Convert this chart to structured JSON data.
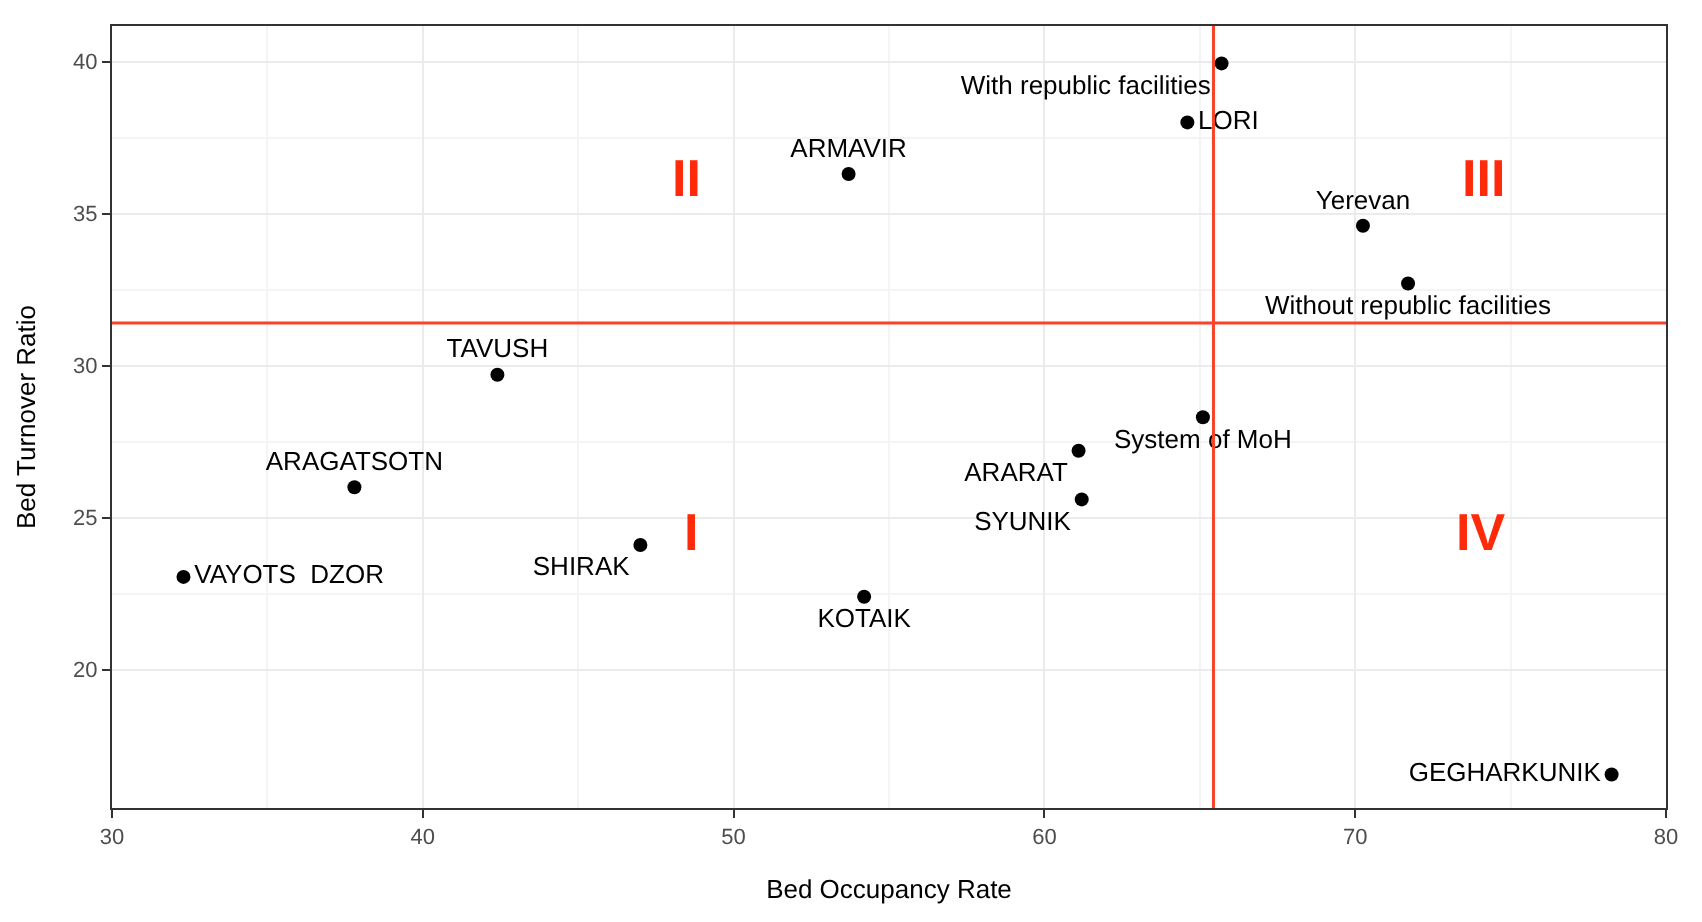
{
  "chart_data": {
    "type": "scatter",
    "xlabel": "Bed Occupancy Rate",
    "ylabel": "Bed Turnover Ratio",
    "xlim": [
      30,
      80
    ],
    "ylim": [
      15.45,
      41.17
    ],
    "xticks": [
      30,
      40,
      50,
      60,
      70,
      80
    ],
    "yticks": [
      20,
      25,
      30,
      35,
      40
    ],
    "grid": true,
    "marker": "circle",
    "series": [
      {
        "color": "#000000",
        "x": [
          65.7,
          64.6,
          53.7,
          70.25,
          71.7,
          42.4,
          65.1,
          61.1,
          37.8,
          61.2,
          47.0,
          32.3,
          54.2,
          78.25
        ],
        "values": [
          39.94,
          38.0,
          36.3,
          34.6,
          32.7,
          29.7,
          28.3,
          27.2,
          26.0,
          25.6,
          24.1,
          23.05,
          22.4,
          16.55
        ],
        "value_labels": [
          "With republic facilities",
          "LORI",
          "ARMAVIR",
          "Yerevan",
          "Without republic facilities",
          "TAVUSH",
          "System of MoH",
          "ARARAT",
          "ARAGATSOTN",
          "SYUNIK",
          "SHIRAK",
          "VAYOTS  DZOR",
          "KOTAIK",
          "GEGHARKUNIK"
        ]
      }
    ],
    "ref_lines": [
      {
        "axis": "x",
        "value": 65.44,
        "color": "#f8432a"
      },
      {
        "axis": "y",
        "value": 31.4,
        "color": "#f8432a"
      }
    ],
    "annotations": [
      "II",
      "III",
      "I",
      "IV"
    ]
  }
}
